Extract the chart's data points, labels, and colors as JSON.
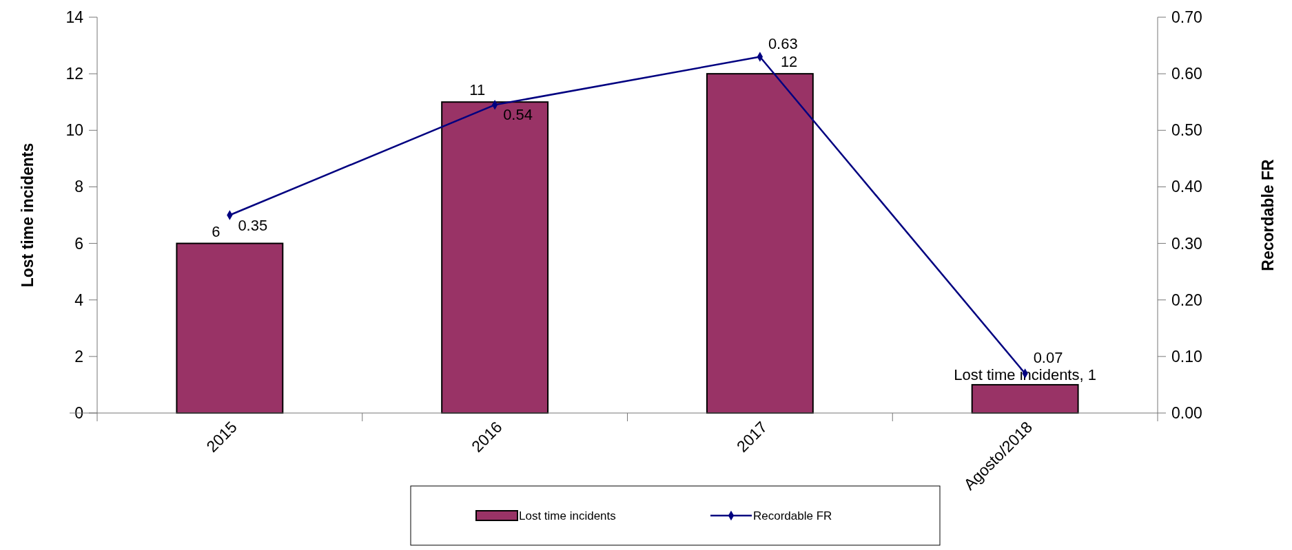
{
  "chart_data": {
    "type": "bar",
    "categories": [
      "2015",
      "2016",
      "2017",
      "Agosto/2018"
    ],
    "ylabel": "Lost time incidents",
    "y2label": "Recordable FR",
    "ylim": [
      0,
      14
    ],
    "yticks": [
      0,
      2,
      4,
      6,
      8,
      10,
      12,
      14
    ],
    "y2lim": [
      0,
      0.7
    ],
    "y2ticks": [
      {
        "value": 0,
        "label": "0.00"
      },
      {
        "value": 0.1,
        "label": "0.10"
      },
      {
        "value": 0.2,
        "label": "0.20"
      },
      {
        "value": 0.3,
        "label": "0.30"
      },
      {
        "value": 0.4,
        "label": "0.40"
      },
      {
        "value": 0.5,
        "label": "0.50"
      },
      {
        "value": 0.6,
        "label": "0.60"
      },
      {
        "value": 0.7,
        "label": "0.70"
      }
    ],
    "grid": false,
    "legend": "bottom",
    "series": [
      {
        "name": "Lost time incidents",
        "color": "#993366",
        "values": [
          6,
          11,
          12,
          1
        ],
        "value_labels": [
          "6",
          "11",
          "12",
          "Lost time incidents, 1"
        ]
      },
      {
        "name": "Recordable FR",
        "type": "line",
        "axis": "y2",
        "color": "#000080",
        "marker": "diamond",
        "line_style": "solid",
        "values": [
          0.35,
          0.545,
          0.63,
          0.07
        ],
        "value_labels": [
          "0.35",
          "0.54",
          "0.63",
          "0.07"
        ]
      }
    ]
  }
}
